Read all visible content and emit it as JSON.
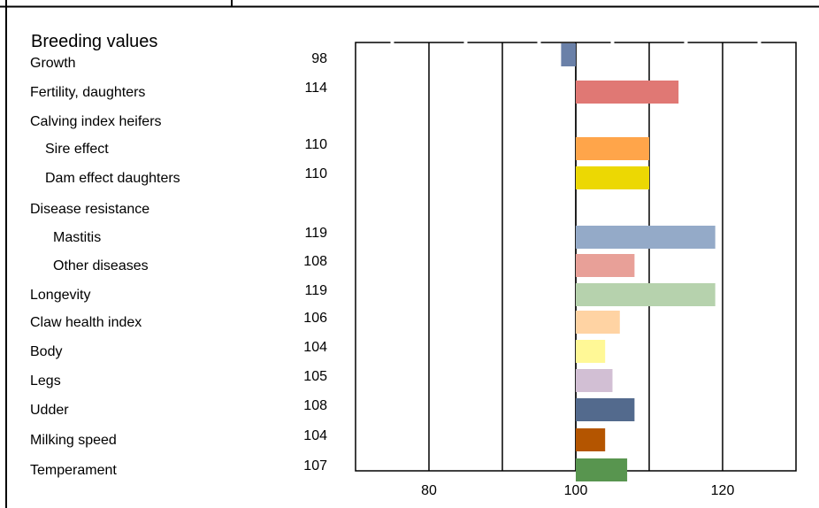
{
  "chart_data": {
    "type": "bar",
    "orientation": "horizontal",
    "title": "Breeding values",
    "baseline": 100,
    "xlim": [
      70,
      130
    ],
    "xticks": [
      80,
      100,
      120
    ],
    "grid": true,
    "legend": "none",
    "rows": [
      {
        "label": "Growth",
        "value": "98",
        "v": 98,
        "color": "#6a80a8"
      },
      {
        "label": "Fertility, daughters",
        "value": "114",
        "v": 114,
        "color": "#e07874"
      },
      {
        "label": "Calving index heifers",
        "value": "",
        "v": null,
        "color": ""
      },
      {
        "label": "Sire effect",
        "value": "110",
        "v": 110,
        "color": "#ffa54a"
      },
      {
        "label": "Dam effect daughters",
        "value": "110",
        "v": 110,
        "color": "#ecd803"
      },
      {
        "label": "Disease resistance",
        "value": "",
        "v": null,
        "color": ""
      },
      {
        "label": "Mastitis",
        "value": "119",
        "v": 119,
        "color": "#94aac8"
      },
      {
        "label": "Other diseases",
        "value": "108",
        "v": 108,
        "color": "#e8a098"
      },
      {
        "label": "Longevity",
        "value": "119",
        "v": 119,
        "color": "#b6d2ad"
      },
      {
        "label": "Claw health index",
        "value": "106",
        "v": 106,
        "color": "#ffd3a3"
      },
      {
        "label": "Body",
        "value": "104",
        "v": 104,
        "color": "#fff896"
      },
      {
        "label": "Legs",
        "value": "105",
        "v": 105,
        "color": "#d2bfd4"
      },
      {
        "label": "Udder",
        "value": "108",
        "v": 108,
        "color": "#536a8d"
      },
      {
        "label": "Milking speed",
        "value": "104",
        "v": 104,
        "color": "#b45500"
      },
      {
        "label": "Temperament",
        "value": "107",
        "v": 107,
        "color": "#58954f"
      }
    ]
  }
}
